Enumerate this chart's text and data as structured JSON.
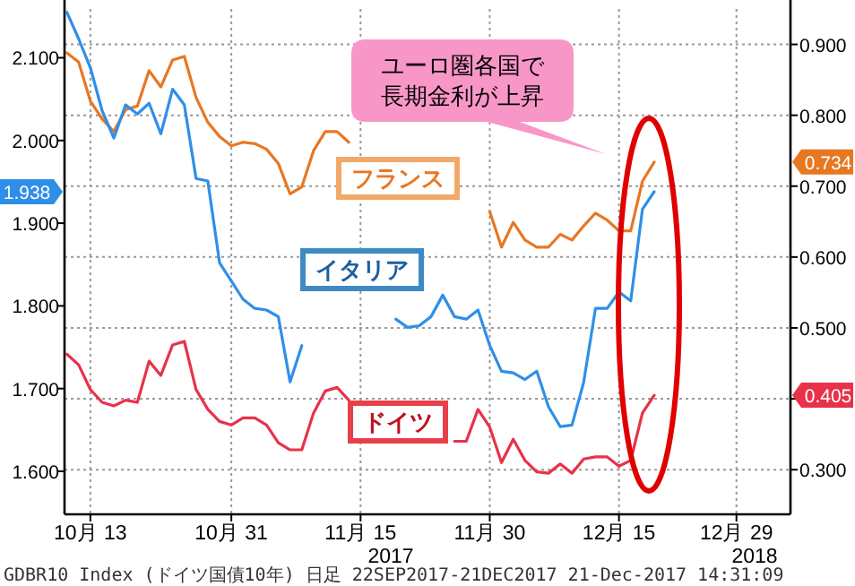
{
  "chart_data": {
    "type": "line",
    "categories": [
      null,
      null,
      "10月 13",
      null,
      null,
      null,
      null,
      null,
      null,
      null,
      null,
      null,
      null,
      null,
      "10月 31",
      null,
      null,
      null,
      null,
      null,
      null,
      null,
      null,
      null,
      null,
      "11月 15",
      null,
      null,
      null,
      null,
      null,
      null,
      null,
      null,
      null,
      null,
      "11月 30",
      null,
      null,
      null,
      null,
      null,
      null,
      null,
      null,
      null,
      null,
      "12月 15",
      null,
      null,
      null,
      null,
      null,
      null,
      null,
      null,
      null,
      "12月 29",
      null,
      null,
      null,
      null,
      null
    ],
    "series": [
      {
        "name": "フランス",
        "color": "#e87722",
        "axis": "y2",
        "values": [
          0.888,
          0.875,
          0.82,
          0.795,
          0.777,
          0.808,
          0.813,
          0.863,
          0.84,
          0.878,
          0.883,
          0.825,
          0.79,
          0.77,
          0.757,
          0.762,
          0.76,
          0.752,
          0.732,
          0.689,
          0.699,
          0.75,
          0.777,
          0.777,
          0.762,
          null,
          null,
          null,
          null,
          null,
          null,
          null,
          null,
          null,
          null,
          null,
          0.664,
          0.614,
          0.649,
          0.624,
          0.614,
          0.614,
          0.632,
          0.624,
          0.644,
          0.662,
          0.652,
          0.637,
          0.637,
          0.707,
          0.734,
          null,
          null,
          null,
          null,
          null,
          null,
          null,
          null,
          null,
          null,
          null,
          null
        ]
      },
      {
        "name": "イタリア",
        "color": "#2f8fe8",
        "values": [
          2.155,
          2.123,
          2.088,
          2.036,
          2.003,
          2.043,
          2.032,
          2.045,
          2.008,
          2.062,
          2.043,
          1.954,
          1.951,
          1.852,
          1.83,
          1.808,
          1.797,
          1.795,
          1.787,
          1.708,
          1.752,
          null,
          null,
          null,
          null,
          null,
          null,
          null,
          1.784,
          1.774,
          1.776,
          1.787,
          1.813,
          1.787,
          1.784,
          1.795,
          1.752,
          1.721,
          1.719,
          1.711,
          1.721,
          1.678,
          1.654,
          1.656,
          1.708,
          1.797,
          1.797,
          1.817,
          1.806,
          1.917,
          1.938,
          null,
          null,
          null,
          null,
          null,
          null,
          null,
          null,
          null,
          null,
          null,
          null
        ]
      },
      {
        "name": "ドイツ",
        "color": "#e8324a",
        "axis": "y2",
        "values": [
          0.463,
          0.448,
          0.413,
          0.395,
          0.39,
          0.398,
          0.395,
          0.453,
          0.433,
          0.476,
          0.481,
          0.413,
          0.385,
          0.368,
          0.363,
          0.373,
          0.373,
          0.363,
          0.338,
          0.328,
          0.328,
          0.38,
          0.411,
          0.416,
          0.398,
          null,
          null,
          null,
          null,
          null,
          null,
          null,
          null,
          0.34,
          0.34,
          0.385,
          0.36,
          0.31,
          0.343,
          0.313,
          0.297,
          0.295,
          0.308,
          0.295,
          0.315,
          0.318,
          0.318,
          0.305,
          0.313,
          0.38,
          0.405,
          null,
          null,
          null,
          null,
          null,
          null,
          null,
          null,
          null,
          null,
          null,
          null
        ]
      }
    ],
    "ylim": [
      1.548,
      2.159
    ],
    "yticks": [
      {
        "value": 1.6,
        "label": "1.600"
      },
      {
        "value": 1.7,
        "label": "1.700"
      },
      {
        "value": 1.8,
        "label": "1.800"
      },
      {
        "value": 1.9,
        "label": "1.900"
      },
      {
        "value": 2.0,
        "label": "2.000"
      },
      {
        "value": 2.1,
        "label": "2.100"
      }
    ],
    "y2lim": [
      0.237,
      0.95
    ],
    "y2ticks": [
      {
        "value": 0.3,
        "label": "0.300"
      },
      {
        "value": 0.4,
        "label": null
      },
      {
        "value": 0.5,
        "label": "0.500"
      },
      {
        "value": 0.6,
        "label": "0.600"
      },
      {
        "value": 0.7,
        "label": "0.700"
      },
      {
        "value": 0.8,
        "label": "0.800"
      },
      {
        "value": 0.9,
        "label": "0.900"
      }
    ],
    "grid": true,
    "marker": "none",
    "line_style": "solid",
    "annotations": [
      "2017",
      "2018",
      "ユーロ圏各国で長期金利が上昇",
      "GDBR10 Index (ドイツ国債10年) 日足 22SEP2017-21DEC2017 21-Dec-2017 14:31:09",
      "0.734",
      "1.938",
      "0.405"
    ]
  }
}
